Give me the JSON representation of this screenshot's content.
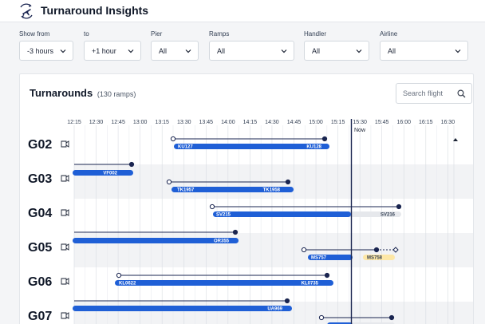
{
  "app": {
    "title": "Turnaround Insights"
  },
  "filters": [
    {
      "label": "Show from",
      "value": "-3 hours"
    },
    {
      "label": "to",
      "value": "+1 hour"
    },
    {
      "label": "Pier",
      "value": "All"
    },
    {
      "label": "Ramps",
      "value": "All"
    },
    {
      "label": "Handler",
      "value": "All"
    },
    {
      "label": "Airline",
      "value": "All"
    }
  ],
  "turnarounds": {
    "title": "Turnarounds",
    "subtitle": "(130 ramps)",
    "search_placeholder": "Search flight",
    "now_label": "Now",
    "times": [
      "12:15",
      "12:30",
      "12:45",
      "13:00",
      "13:15",
      "13:30",
      "13:45",
      "14:00",
      "14:15",
      "14:30",
      "14:45",
      "15:00",
      "15:15",
      "15:30",
      "15:45",
      "16:00",
      "16:15",
      "16:30"
    ]
  },
  "ramps": [
    {
      "gate": "G02",
      "flights": [
        {
          "inbound": "KU127",
          "outbound": "KU128"
        }
      ]
    },
    {
      "gate": "G03",
      "flights": [
        {
          "inbound": "VF002",
          "outbound": ""
        },
        {
          "inbound": "TK1957",
          "outbound": "TK1958"
        }
      ]
    },
    {
      "gate": "G04",
      "flights": [
        {
          "inbound": "SV215",
          "outbound": "SV216"
        }
      ]
    },
    {
      "gate": "G05",
      "flights": [
        {
          "inbound": "OR355",
          "outbound": ""
        },
        {
          "inbound": "MS757",
          "outbound": "MS758"
        }
      ]
    },
    {
      "gate": "G06",
      "flights": [
        {
          "inbound": "KL0622",
          "outbound": "KL0735"
        }
      ]
    },
    {
      "gate": "G07",
      "flights": [
        {
          "inbound": "UA969",
          "outbound": ""
        }
      ]
    }
  ],
  "colors": {
    "bar": "#1f5fd6",
    "future": "#e6e8ec",
    "delay": "#fde7a6",
    "now": "#1a2550",
    "alt_row": "#f2f3f5"
  }
}
